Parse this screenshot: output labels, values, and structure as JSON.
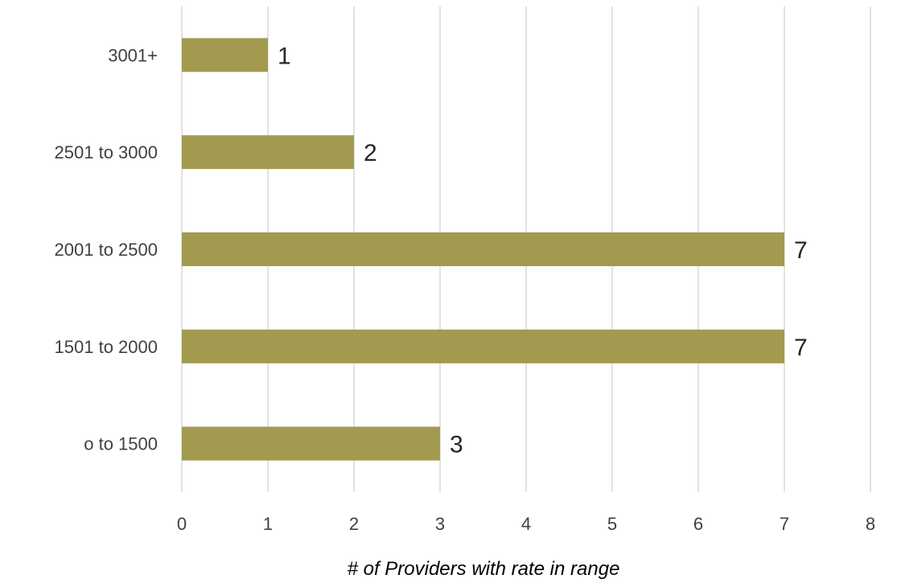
{
  "chart_data": {
    "type": "bar",
    "orientation": "horizontal",
    "categories": [
      "o to 1500",
      "1501 to 2000",
      "2001 to 2500",
      "2501 to 3000",
      "3001+"
    ],
    "values": [
      3,
      7,
      7,
      2,
      1
    ],
    "data_labels": [
      "3",
      "7",
      "7",
      "2",
      "1"
    ],
    "xlabel": "# of Providers with rate in range",
    "ylabel": "",
    "xlim": [
      0,
      8
    ],
    "x_ticks": [
      "0",
      "1",
      "2",
      "3",
      "4",
      "5",
      "6",
      "7",
      "8"
    ],
    "grid": true,
    "legend": "none",
    "bar_color": "#a29a4e"
  }
}
